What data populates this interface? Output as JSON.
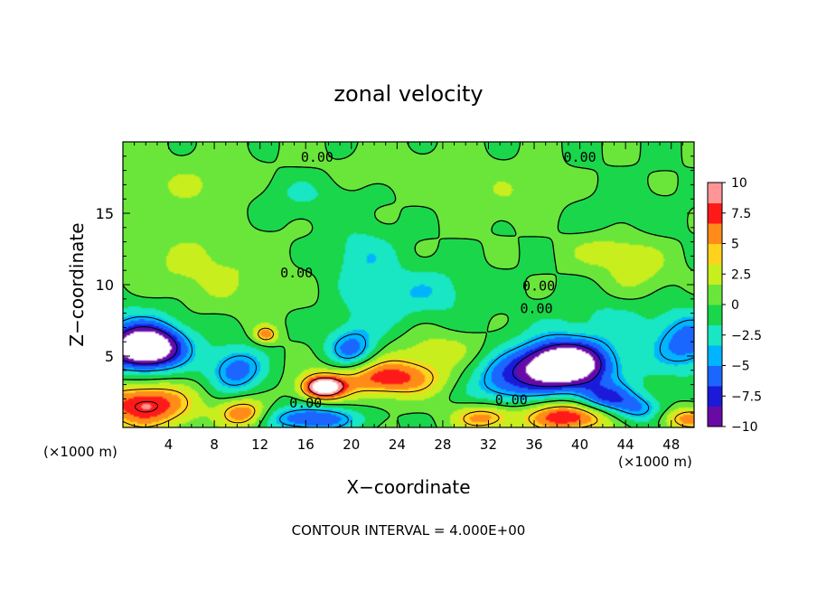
{
  "chart_data": {
    "type": "heatmap",
    "title": "zonal velocity",
    "xlabel": "X−coordinate",
    "ylabel": "Z−coordinate",
    "x_unit_left": "(×1000 m)",
    "x_unit_right": "(×1000 m)",
    "xlim": [
      0,
      50
    ],
    "ylim": [
      0,
      20
    ],
    "x_ticks": [
      4,
      8,
      12,
      16,
      20,
      24,
      28,
      32,
      36,
      40,
      44,
      48
    ],
    "x_tick_labels": [
      "4",
      "8",
      "12",
      "16",
      "20",
      "24",
      "28",
      "32",
      "36",
      "40",
      "44",
      "48"
    ],
    "y_ticks": [
      5,
      10,
      15
    ],
    "y_tick_labels": [
      "5",
      "10",
      "15"
    ],
    "colorbar": {
      "min": -10,
      "max": 10,
      "ticks": [
        10,
        7.5,
        5,
        2.5,
        0,
        -2.5,
        -5,
        -7.5,
        -10
      ],
      "tick_labels": [
        "10",
        "7.5",
        "5",
        "2.5",
        "0",
        "−2.5",
        "−5",
        "−7.5",
        "−10"
      ],
      "colors": [
        "#6a0aa6",
        "#1a1ad8",
        "#1a66ff",
        "#00b4ff",
        "#19e6c2",
        "#19d64a",
        "#6ae63a",
        "#c8ee1e",
        "#ffd21e",
        "#ff8c19",
        "#ff1a1a",
        "#ff9696"
      ]
    },
    "annotation": "CONTOUR INTERVAL = 4.000E+00",
    "contour_labels": [
      {
        "text": "0.00",
        "x": 17.0,
        "z": 18.6
      },
      {
        "text": "0.00",
        "x": 40.0,
        "z": 18.6
      },
      {
        "text": "0.00",
        "x": 15.2,
        "z": 10.5
      },
      {
        "text": "0.00",
        "x": 36.4,
        "z": 9.6
      },
      {
        "text": "0.00",
        "x": 36.2,
        "z": 8.0
      },
      {
        "text": "0.00",
        "x": 16.0,
        "z": 1.4
      },
      {
        "text": "0.00",
        "x": 34.0,
        "z": 1.6
      }
    ],
    "field_blobs": [
      {
        "x": 2,
        "z": 5.6,
        "rx": 3.0,
        "rz": 1.4,
        "v": -12
      },
      {
        "x": 1.5,
        "z": 6.0,
        "rx": 5.0,
        "rz": 2.8,
        "v": -4
      },
      {
        "x": 38.5,
        "z": 4.4,
        "rx": 3.4,
        "rz": 1.5,
        "v": -12
      },
      {
        "x": 39.5,
        "z": 4.4,
        "rx": 6.0,
        "rz": 2.6,
        "v": -4
      },
      {
        "x": 49.5,
        "z": 6.0,
        "rx": 3.0,
        "rz": 2.0,
        "v": -6
      },
      {
        "x": 10,
        "z": 4.0,
        "rx": 2.4,
        "rz": 1.6,
        "v": -6
      },
      {
        "x": 20,
        "z": 5.4,
        "rx": 2.2,
        "rz": 1.6,
        "v": -6
      },
      {
        "x": 16.5,
        "z": 0.6,
        "rx": 4.0,
        "rz": 0.9,
        "v": -7
      },
      {
        "x": 33.5,
        "z": 3.2,
        "rx": 3.5,
        "rz": 1.8,
        "v": -5
      },
      {
        "x": 42,
        "z": 2.0,
        "rx": 2.5,
        "rz": 1.0,
        "v": -6
      },
      {
        "x": 45,
        "z": 1.2,
        "rx": 2.5,
        "rz": 1.0,
        "v": -5
      },
      {
        "x": 15,
        "z": 16.5,
        "rx": 5.0,
        "rz": 1.8,
        "v": -2.5
      },
      {
        "x": 21,
        "z": 12.0,
        "rx": 3.0,
        "rz": 2.0,
        "v": -3
      },
      {
        "x": 27,
        "z": 9.5,
        "rx": 4.0,
        "rz": 1.8,
        "v": -2.8
      },
      {
        "x": 22,
        "z": 8.5,
        "rx": 3.0,
        "rz": 2.0,
        "v": -2.5
      },
      {
        "x": 42,
        "z": 14,
        "rx": 6.0,
        "rz": 3.0,
        "v": -1.5
      },
      {
        "x": 43,
        "z": 8,
        "rx": 5,
        "rz": 1.6,
        "v": -1.5
      },
      {
        "x": 2,
        "z": 1.6,
        "rx": 4.0,
        "rz": 1.6,
        "v": 9
      },
      {
        "x": 10.5,
        "z": 1.0,
        "rx": 2.0,
        "rz": 1.0,
        "v": 7
      },
      {
        "x": 23,
        "z": 3.5,
        "rx": 5.0,
        "rz": 1.3,
        "v": 8
      },
      {
        "x": 17.5,
        "z": 2.8,
        "rx": 1.8,
        "rz": 0.8,
        "v": 12
      },
      {
        "x": 39,
        "z": 0.8,
        "rx": 4.0,
        "rz": 1.1,
        "v": 9
      },
      {
        "x": 31.5,
        "z": 0.7,
        "rx": 2.5,
        "rz": 0.9,
        "v": 6
      },
      {
        "x": 49.5,
        "z": 0.6,
        "rx": 2.5,
        "rz": 0.8,
        "v": 6
      },
      {
        "x": 12.5,
        "z": 6.5,
        "rx": 1.0,
        "rz": 0.6,
        "v": 6
      },
      {
        "x": 28,
        "z": 5.5,
        "rx": 4,
        "rz": 1.2,
        "v": 2.5
      },
      {
        "x": 42,
        "z": 12.5,
        "rx": 4,
        "rz": 1.5,
        "v": 3
      },
      {
        "x": 45,
        "z": 11,
        "rx": 3,
        "rz": 2,
        "v": 2.5
      },
      {
        "x": 7,
        "z": 11,
        "rx": 6,
        "rz": 3,
        "v": 2.2
      },
      {
        "x": 8,
        "z": 17,
        "rx": 8,
        "rz": 2,
        "v": 1.8
      },
      {
        "x": 35,
        "z": 16,
        "rx": 6,
        "rz": 2,
        "v": 1.5
      },
      {
        "x": 24,
        "z": 18,
        "rx": 8,
        "rz": 1.4,
        "v": 1.2
      }
    ]
  }
}
